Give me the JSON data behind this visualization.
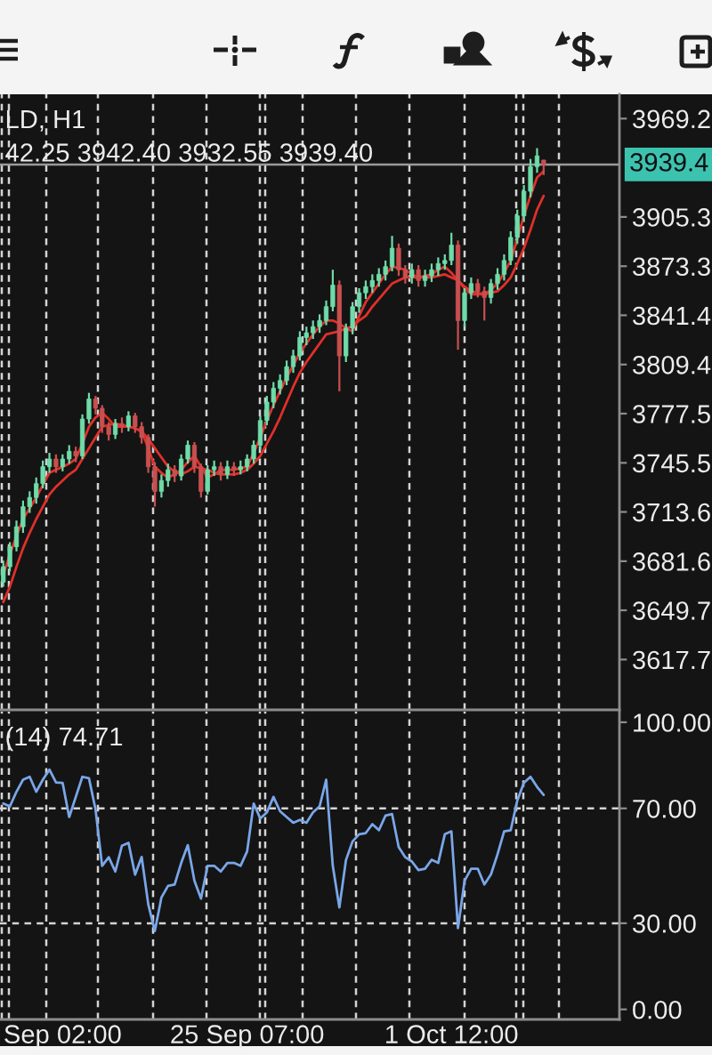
{
  "chart_data": [
    {
      "type": "candlestick",
      "categories": [
        null,
        null,
        null,
        null,
        null,
        null,
        null,
        null,
        null,
        null,
        null,
        null,
        null,
        null,
        null,
        null,
        null,
        null,
        null,
        null,
        null,
        null,
        null,
        null,
        null,
        null,
        null,
        null,
        null,
        null,
        null,
        null,
        null,
        null,
        null,
        null,
        null,
        null,
        null,
        null,
        null,
        null,
        null,
        null,
        null,
        null,
        null,
        null,
        null,
        null,
        null,
        null,
        null,
        null,
        null,
        null,
        null,
        null,
        null,
        null,
        null,
        null,
        null,
        null,
        null,
        null,
        null,
        null,
        null,
        null,
        null,
        null,
        null,
        null,
        null,
        null,
        null,
        null,
        null,
        null,
        null,
        null,
        null,
        null,
        null,
        null,
        null,
        null,
        null,
        null,
        null,
        null,
        null,
        null
      ],
      "ohlc": [
        [
          3668,
          3682,
          3665,
          3678
        ],
        [
          3678,
          3694,
          3675,
          3691
        ],
        [
          3691,
          3708,
          3688,
          3704
        ],
        [
          3704,
          3721,
          3700,
          3717
        ],
        [
          3717,
          3727,
          3713,
          3723
        ],
        [
          3723,
          3736,
          3719,
          3732
        ],
        [
          3732,
          3747,
          3729,
          3743
        ],
        [
          3743,
          3752,
          3739,
          3748
        ],
        [
          3748,
          3751,
          3739,
          3743
        ],
        [
          3743,
          3751,
          3740,
          3748
        ],
        [
          3748,
          3757,
          3745,
          3753
        ],
        [
          3753,
          3756,
          3746,
          3750
        ],
        [
          3750,
          3777,
          3748,
          3774
        ],
        [
          3774,
          3791,
          3771,
          3787
        ],
        [
          3787,
          3789,
          3777,
          3781
        ],
        [
          3781,
          3783,
          3765,
          3769
        ],
        [
          3769,
          3772,
          3760,
          3764
        ],
        [
          3764,
          3774,
          3761,
          3771
        ],
        [
          3771,
          3775,
          3765,
          3769
        ],
        [
          3769,
          3779,
          3766,
          3776
        ],
        [
          3776,
          3778,
          3765,
          3769
        ],
        [
          3769,
          3772,
          3758,
          3762
        ],
        [
          3762,
          3764,
          3739,
          3743
        ],
        [
          3743,
          3746,
          3717,
          3727
        ],
        [
          3727,
          3738,
          3723,
          3734
        ],
        [
          3734,
          3745,
          3730,
          3741
        ],
        [
          3741,
          3744,
          3733,
          3737
        ],
        [
          3737,
          3751,
          3734,
          3748
        ],
        [
          3748,
          3760,
          3745,
          3757
        ],
        [
          3757,
          3759,
          3739,
          3743
        ],
        [
          3743,
          3745,
          3723,
          3727
        ],
        [
          3727,
          3744,
          3725,
          3741
        ],
        [
          3741,
          3747,
          3737,
          3743
        ],
        [
          3743,
          3746,
          3734,
          3738
        ],
        [
          3738,
          3747,
          3735,
          3743
        ],
        [
          3743,
          3746,
          3737,
          3741
        ],
        [
          3741,
          3747,
          3738,
          3743
        ],
        [
          3743,
          3751,
          3740,
          3748
        ],
        [
          3748,
          3760,
          3745,
          3757
        ],
        [
          3757,
          3776,
          3754,
          3773
        ],
        [
          3773,
          3789,
          3770,
          3785
        ],
        [
          3785,
          3798,
          3781,
          3794
        ],
        [
          3794,
          3803,
          3790,
          3799
        ],
        [
          3799,
          3812,
          3796,
          3808
        ],
        [
          3808,
          3819,
          3804,
          3815
        ],
        [
          3815,
          3831,
          3812,
          3827
        ],
        [
          3827,
          3834,
          3822,
          3830
        ],
        [
          3830,
          3838,
          3826,
          3834
        ],
        [
          3834,
          3842,
          3830,
          3838
        ],
        [
          3838,
          3851,
          3835,
          3847
        ],
        [
          3847,
          3871,
          3844,
          3861
        ],
        [
          3861,
          3864,
          3792,
          3815
        ],
        [
          3815,
          3836,
          3811,
          3833
        ],
        [
          3833,
          3850,
          3829,
          3847
        ],
        [
          3847,
          3859,
          3843,
          3856
        ],
        [
          3856,
          3864,
          3852,
          3860
        ],
        [
          3860,
          3868,
          3856,
          3864
        ],
        [
          3864,
          3872,
          3860,
          3868
        ],
        [
          3868,
          3877,
          3864,
          3873
        ],
        [
          3873,
          3893,
          3870,
          3885
        ],
        [
          3885,
          3888,
          3867,
          3871
        ],
        [
          3871,
          3874,
          3862,
          3866
        ],
        [
          3866,
          3875,
          3862,
          3871
        ],
        [
          3871,
          3874,
          3860,
          3864
        ],
        [
          3864,
          3871,
          3860,
          3867
        ],
        [
          3867,
          3875,
          3863,
          3871
        ],
        [
          3871,
          3879,
          3867,
          3875
        ],
        [
          3875,
          3881,
          3871,
          3877
        ],
        [
          3877,
          3895,
          3874,
          3887
        ],
        [
          3887,
          3890,
          3819,
          3838
        ],
        [
          3838,
          3859,
          3834,
          3856
        ],
        [
          3856,
          3866,
          3852,
          3862
        ],
        [
          3862,
          3865,
          3853,
          3857
        ],
        [
          3857,
          3860,
          3838,
          3853
        ],
        [
          3853,
          3865,
          3849,
          3862
        ],
        [
          3862,
          3872,
          3858,
          3868
        ],
        [
          3868,
          3881,
          3864,
          3877
        ],
        [
          3877,
          3896,
          3874,
          3892
        ],
        [
          3892,
          3910,
          3888,
          3906
        ],
        [
          3906,
          3926,
          3902,
          3922
        ],
        [
          3922,
          3943,
          3918,
          3938
        ],
        [
          3938,
          3950,
          3934,
          3945
        ],
        [
          3942.25,
          3942.4,
          3932.55,
          3939.4
        ],
        null,
        null,
        null,
        null,
        null,
        null,
        null,
        null,
        null,
        null,
        null
      ],
      "colors": [
        "#6fdba8",
        "#6fdba8",
        "#6fdba8",
        "#6fdba8",
        "#6fdba8",
        "#6fdba8",
        "#6fdba8",
        "#6fdba8",
        "#c94f4f",
        "#6fdba8",
        "#6fdba8",
        "#c94f4f",
        "#6fdba8",
        "#6fdba8",
        "#c94f4f",
        "#c94f4f",
        "#c94f4f",
        "#6fdba8",
        "#c94f4f",
        "#6fdba8",
        "#c94f4f",
        "#c94f4f",
        "#c94f4f",
        "#c94f4f",
        "#6fdba8",
        "#6fdba8",
        "#c94f4f",
        "#6fdba8",
        "#6fdba8",
        "#c94f4f",
        "#c94f4f",
        "#6fdba8",
        "#6fdba8",
        "#c94f4f",
        "#6fdba8",
        "#c94f4f",
        "#6fdba8",
        "#6fdba8",
        "#6fdba8",
        "#6fdba8",
        "#6fdba8",
        "#6fdba8",
        "#6fdba8",
        "#6fdba8",
        "#6fdba8",
        "#6fdba8",
        "#6fdba8",
        "#6fdba8",
        "#6fdba8",
        "#6fdba8",
        "#6fdba8",
        "#c94f4f",
        "#6fdba8",
        "#6fdba8",
        "#6fdba8",
        "#6fdba8",
        "#6fdba8",
        "#6fdba8",
        "#6fdba8",
        "#6fdba8",
        "#c94f4f",
        "#c94f4f",
        "#6fdba8",
        "#c94f4f",
        "#6fdba8",
        "#6fdba8",
        "#6fdba8",
        "#6fdba8",
        "#6fdba8",
        "#c94f4f",
        "#6fdba8",
        "#6fdba8",
        "#c94f4f",
        "#c94f4f",
        "#6fdba8",
        "#6fdba8",
        "#6fdba8",
        "#6fdba8",
        "#6fdba8",
        "#6fdba8",
        "#6fdba8",
        "#6fdba8",
        "#c94f4f",
        null,
        null,
        null,
        null,
        null,
        null,
        null,
        null,
        null,
        null,
        null
      ],
      "series": [
        {
          "type": "line",
          "color": "#e0302a",
          "values": [
            3673,
            3686,
            3698,
            3709,
            3716,
            3723,
            3731,
            3739,
            3741,
            3743,
            3745,
            3748,
            3758,
            3769,
            3775,
            3778,
            3774,
            3769,
            3769,
            3769,
            3768,
            3766,
            3755,
            3743,
            3739,
            3736,
            3738,
            3741,
            3746,
            3750,
            3743,
            3736,
            3738,
            3741,
            3741,
            3741,
            3742,
            3743,
            3752,
            3762,
            3773,
            3783,
            3792,
            3801,
            3809,
            3817,
            3823,
            3829,
            3834,
            3838,
            3838,
            3836,
            3833,
            3831,
            3841,
            3850,
            3856,
            3862,
            3868,
            3873,
            3872,
            3871,
            3868,
            3866,
            3867,
            3868,
            3871,
            3873,
            3869,
            3864,
            3859,
            3855,
            3855,
            3855,
            3858,
            3862,
            3869,
            3877,
            3891,
            3906,
            3919,
            3931,
            3935,
            null,
            null,
            null,
            null,
            null,
            null,
            null,
            null,
            null,
            null,
            null
          ]
        },
        {
          "type": "line",
          "color": "#e0302a",
          "values": [
            3655,
            3665,
            3678,
            3690,
            3700,
            3709,
            3717,
            3725,
            3730,
            3734,
            3738,
            3741,
            3748,
            3755,
            3762,
            3769,
            3770,
            3771,
            3770,
            3769,
            3768,
            3766,
            3761,
            3755,
            3749,
            3743,
            3740,
            3738,
            3740,
            3743,
            3742,
            3741,
            3739,
            3738,
            3738,
            3738,
            3739,
            3741,
            3745,
            3750,
            3758,
            3766,
            3775,
            3785,
            3795,
            3804,
            3811,
            3817,
            3823,
            3829,
            3830,
            3831,
            3833,
            3834,
            3838,
            3841,
            3847,
            3852,
            3857,
            3862,
            3864,
            3866,
            3866,
            3866,
            3866,
            3866,
            3867,
            3868,
            3866,
            3864,
            3860,
            3857,
            3856,
            3855,
            3856,
            3857,
            3861,
            3866,
            3875,
            3885,
            3897,
            3910,
            3919,
            null,
            null,
            null,
            null,
            null,
            null,
            null,
            null,
            null,
            null,
            null
          ]
        }
      ],
      "ylim": [
        3585,
        3985
      ],
      "yticks": [
        3969.2,
        3905.3,
        3873.3,
        3841.4,
        3809.4,
        3777.5,
        3745.5,
        3713.6,
        3681.6,
        3649.7,
        3617.7
      ],
      "tick_labels": "y",
      "grid": "x",
      "ref_lines": [
        {
          "axis": "y",
          "value": 3939.4,
          "label": "3939.4",
          "color": "#9a9a9a",
          "line_style": "solid"
        }
      ],
      "annotations": [
        "LD, H1",
        "42.25 3942.40 3932.55 3939.40"
      ]
    },
    {
      "type": "line",
      "categories": [
        null,
        null,
        null,
        null,
        null,
        null,
        null,
        null,
        null,
        "Sep 02:00",
        null,
        null,
        null,
        null,
        null,
        null,
        null,
        null,
        null,
        null,
        null,
        null,
        null,
        null,
        null,
        null,
        null,
        null,
        null,
        null,
        null,
        null,
        null,
        null,
        null,
        null,
        null,
        "25 Sep 07:00",
        null,
        null,
        null,
        null,
        null,
        null,
        null,
        null,
        null,
        null,
        null,
        null,
        null,
        null,
        null,
        null,
        null,
        null,
        null,
        null,
        null,
        null,
        null,
        null,
        null,
        null,
        null,
        null,
        null,
        null,
        "1 Oct 12:00",
        null,
        null,
        null,
        null,
        null,
        null,
        null,
        null,
        null,
        null,
        null,
        null,
        null,
        null,
        null,
        null,
        null,
        null,
        null,
        null,
        null,
        null,
        null,
        null,
        null
      ],
      "series": [
        {
          "color": "#7aa6e8",
          "values": [
            71.7,
            70.7,
            75.8,
            80,
            81,
            75.8,
            80,
            83.5,
            79,
            78.9,
            67,
            74,
            81,
            80.5,
            69.6,
            50,
            53,
            48,
            57,
            58,
            46.9,
            53.1,
            36.6,
            27.3,
            39,
            43,
            43.5,
            51,
            57.2,
            44.8,
            38.6,
            50,
            50,
            48,
            51,
            51,
            50,
            55,
            71.7,
            66.5,
            68.6,
            74,
            69,
            67,
            65,
            66,
            65,
            68.6,
            70.7,
            80,
            50,
            35.5,
            52,
            58.5,
            61,
            61.4,
            64.5,
            62.4,
            67.5,
            68,
            56.5,
            53,
            51.5,
            48.5,
            49,
            52.1,
            51,
            61,
            62,
            28.3,
            44.8,
            49,
            49,
            43.5,
            47,
            54,
            62,
            62.4,
            72.7,
            78.9,
            81,
            77.5,
            74.71,
            null,
            null,
            null,
            null,
            null,
            null,
            null,
            null,
            null,
            null,
            null
          ]
        }
      ],
      "ylim": [
        -3.5,
        103.7
      ],
      "yticks": [
        {
          "value": 0,
          "label": "0.00"
        },
        {
          "value": 30,
          "label": "30.00"
        },
        {
          "value": 70,
          "label": "70.00"
        },
        {
          "value": 100,
          "label": "100.00"
        }
      ],
      "grid": "x",
      "ref_lines": [
        {
          "axis": "y",
          "value": 70,
          "color": "#d4d4d4",
          "line_style": "dashed"
        },
        {
          "axis": "y",
          "value": 30,
          "color": "#d4d4d4",
          "line_style": "dashed"
        }
      ],
      "annotations": [
        "(14) 74.71"
      ]
    }
  ]
}
